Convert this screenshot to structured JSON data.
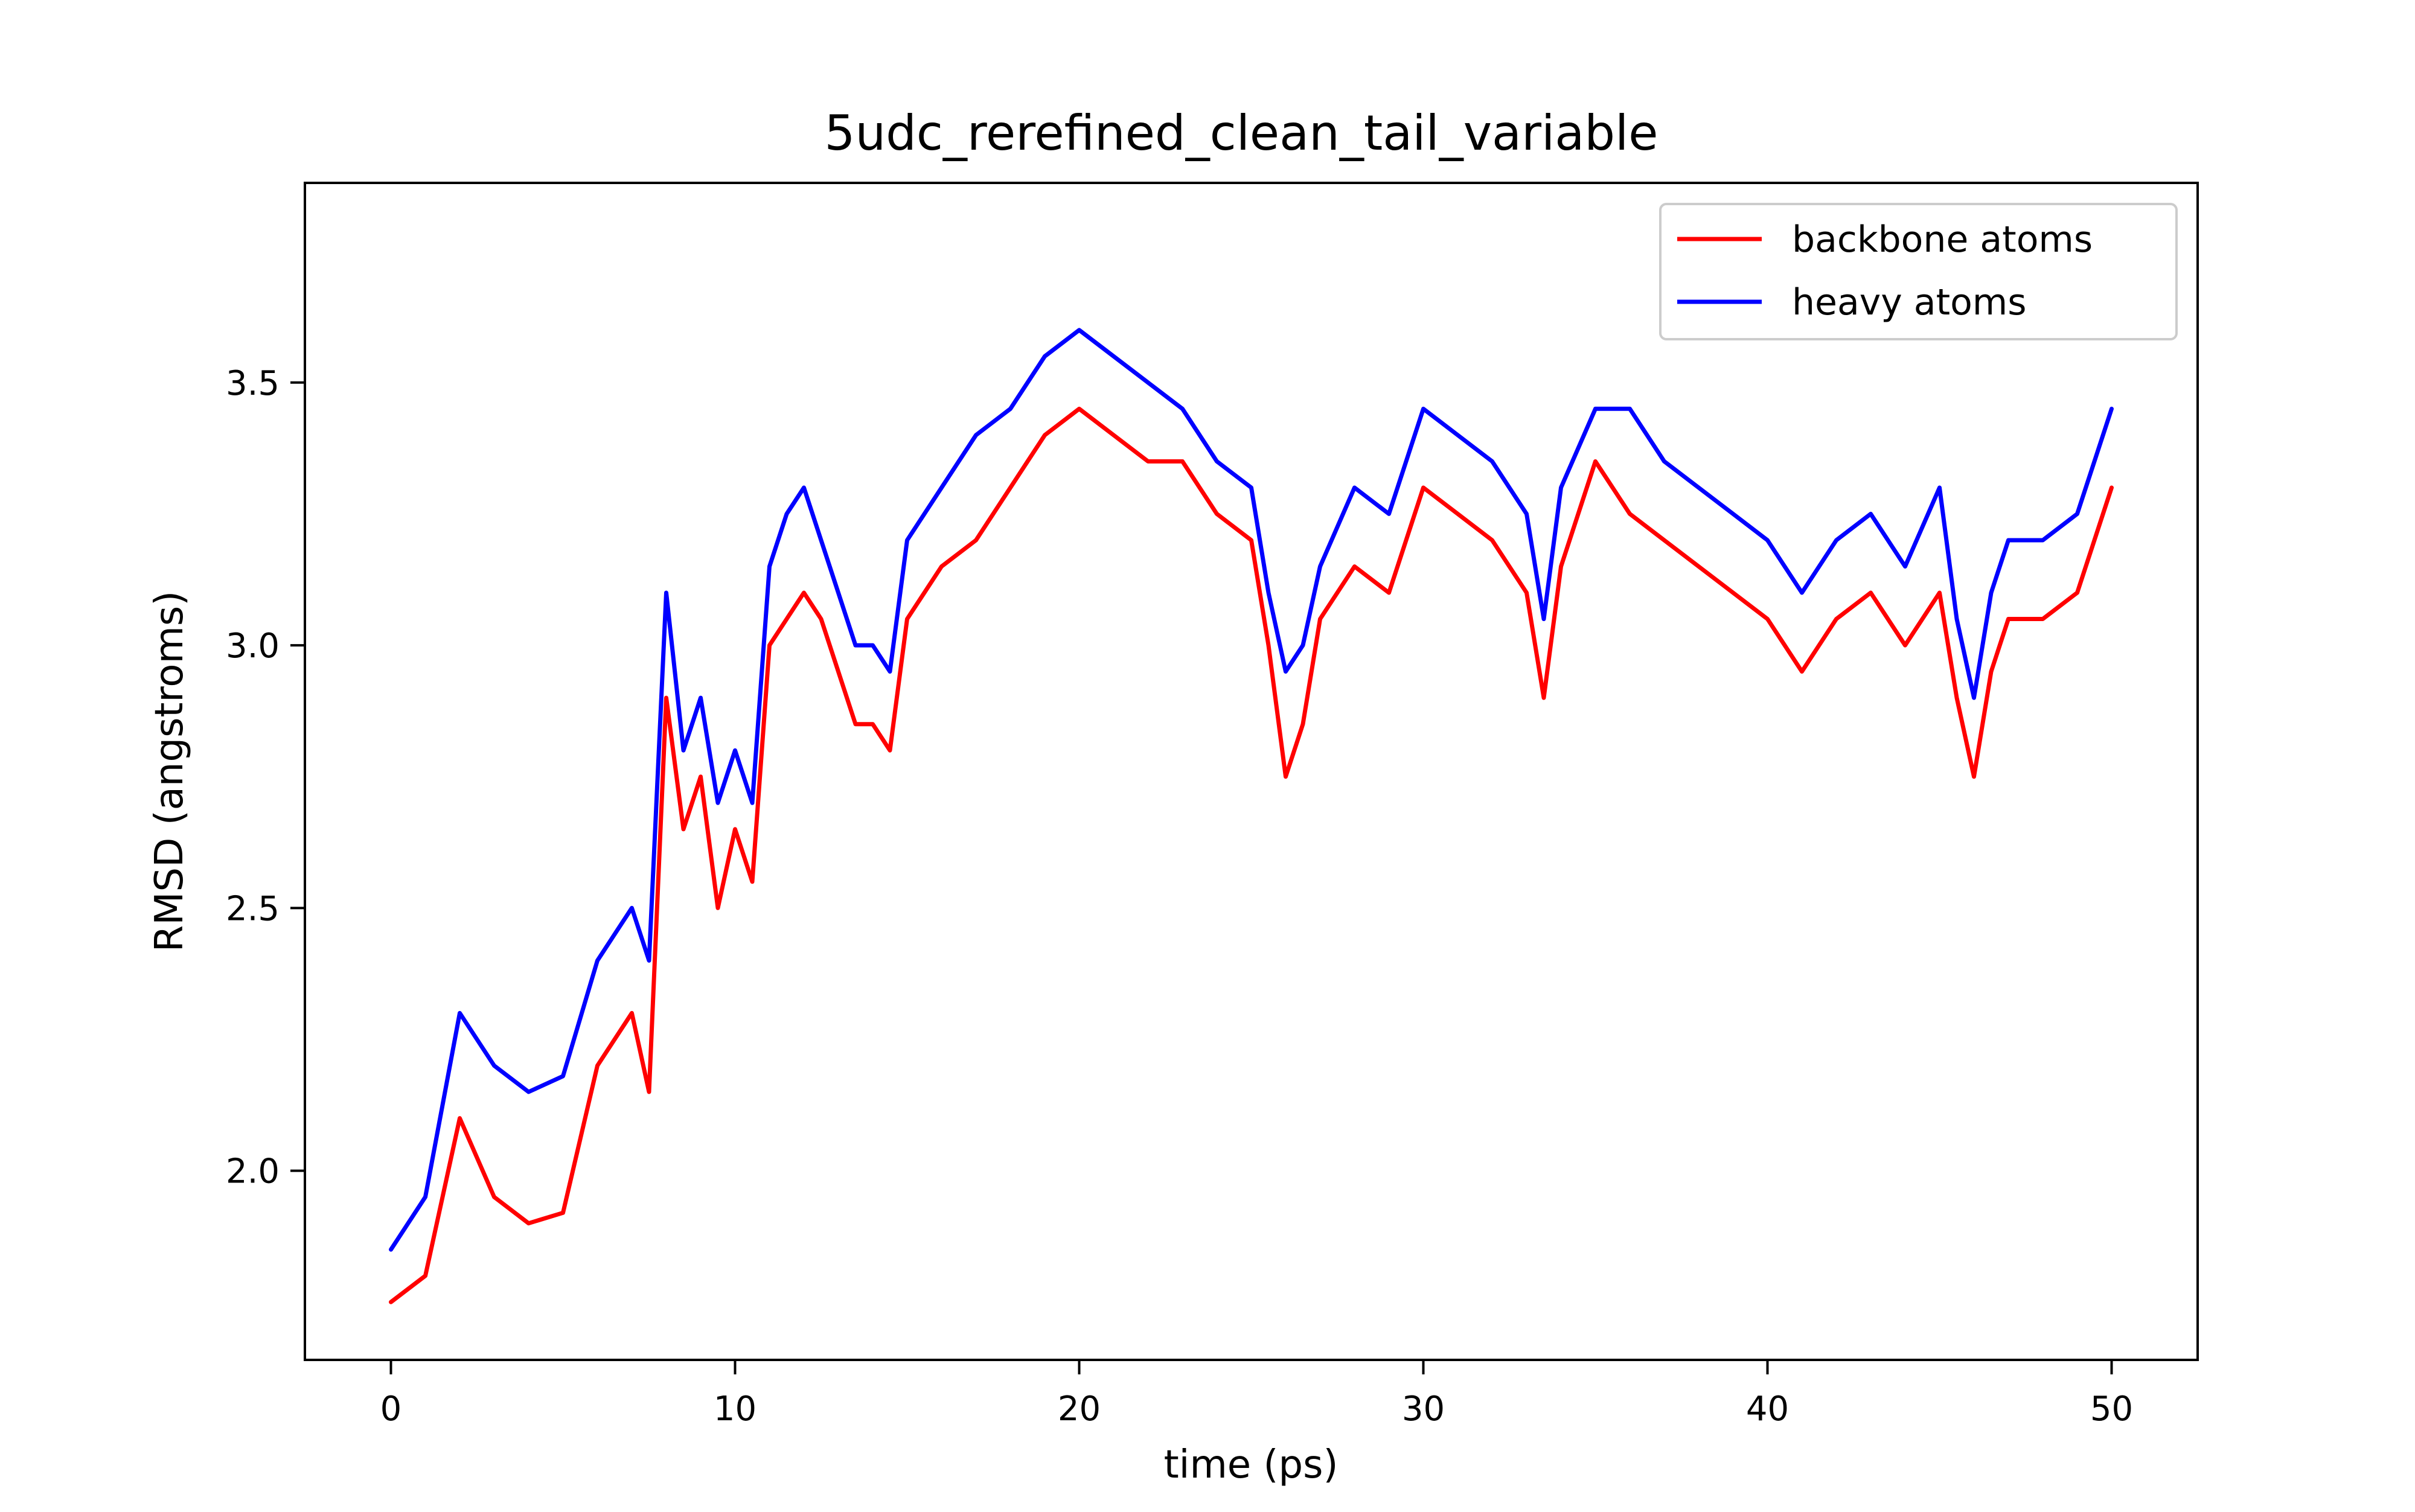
{
  "chart_data": {
    "type": "line",
    "title": "5udc_rerefined_clean_tail_variable",
    "xlabel": "time (ps)",
    "ylabel": "RMSD (angstroms)",
    "xlim": [
      -2.5,
      52.5
    ],
    "ylim": [
      1.64,
      3.88
    ],
    "xticks": [
      0,
      10,
      20,
      30,
      40,
      50
    ],
    "xtick_labels": [
      "0",
      "10",
      "20",
      "30",
      "40",
      "50"
    ],
    "yticks": [
      2.0,
      2.5,
      3.0,
      3.5
    ],
    "ytick_labels": [
      "2.0",
      "2.5",
      "3.0",
      "3.5"
    ],
    "grid": false,
    "legend_position": "top-right",
    "series": [
      {
        "name": "backbone atoms",
        "color": "#ff0000",
        "x": [
          0,
          1,
          2,
          3,
          4,
          5,
          6,
          7,
          7.5,
          8,
          8.5,
          9,
          9.5,
          10,
          10.5,
          11,
          11.5,
          12,
          12.5,
          13,
          13.5,
          14,
          14.5,
          15,
          16,
          17,
          18,
          19,
          20,
          21,
          22,
          23,
          24,
          25,
          25.5,
          26,
          26.5,
          27,
          28,
          29,
          30,
          31,
          32,
          33,
          33.5,
          34,
          35,
          36,
          37,
          38,
          39,
          40,
          41,
          42,
          43,
          44,
          45,
          45.5,
          46,
          46.5,
          47,
          48,
          49,
          50
        ],
        "values": [
          1.75,
          1.8,
          2.1,
          1.95,
          1.9,
          1.92,
          2.2,
          2.3,
          2.15,
          2.9,
          2.65,
          2.75,
          2.5,
          2.65,
          2.55,
          3.0,
          3.05,
          3.1,
          3.05,
          2.95,
          2.85,
          2.85,
          2.8,
          3.05,
          3.15,
          3.2,
          3.3,
          3.4,
          3.45,
          3.4,
          3.35,
          3.35,
          3.25,
          3.2,
          3.0,
          2.75,
          2.85,
          3.05,
          3.15,
          3.1,
          3.3,
          3.25,
          3.2,
          3.1,
          2.9,
          3.15,
          3.35,
          3.25,
          3.2,
          3.15,
          3.1,
          3.05,
          2.95,
          3.05,
          3.1,
          3.0,
          3.1,
          2.9,
          2.75,
          2.95,
          3.05,
          3.05,
          3.1,
          3.3
        ]
      },
      {
        "name": "heavy atoms",
        "color": "#0000ff",
        "x": [
          0,
          1,
          2,
          3,
          4,
          5,
          6,
          7,
          7.5,
          8,
          8.5,
          9,
          9.5,
          10,
          10.5,
          11,
          11.5,
          12,
          12.5,
          13,
          13.5,
          14,
          14.5,
          15,
          16,
          17,
          18,
          19,
          20,
          21,
          22,
          23,
          24,
          25,
          25.5,
          26,
          26.5,
          27,
          28,
          29,
          30,
          31,
          32,
          33,
          33.5,
          34,
          35,
          36,
          37,
          38,
          39,
          40,
          41,
          42,
          43,
          44,
          45,
          45.5,
          46,
          46.5,
          47,
          48,
          49,
          50
        ],
        "values": [
          1.85,
          1.95,
          2.3,
          2.2,
          2.15,
          2.18,
          2.4,
          2.5,
          2.4,
          3.1,
          2.8,
          2.9,
          2.7,
          2.8,
          2.7,
          3.15,
          3.25,
          3.3,
          3.2,
          3.1,
          3.0,
          3.0,
          2.95,
          3.2,
          3.3,
          3.4,
          3.45,
          3.55,
          3.6,
          3.55,
          3.5,
          3.45,
          3.35,
          3.3,
          3.1,
          2.95,
          3.0,
          3.15,
          3.3,
          3.25,
          3.45,
          3.4,
          3.35,
          3.25,
          3.05,
          3.3,
          3.45,
          3.45,
          3.35,
          3.3,
          3.25,
          3.2,
          3.1,
          3.2,
          3.25,
          3.15,
          3.3,
          3.05,
          2.9,
          3.1,
          3.2,
          3.2,
          3.25,
          3.45
        ]
      }
    ]
  }
}
